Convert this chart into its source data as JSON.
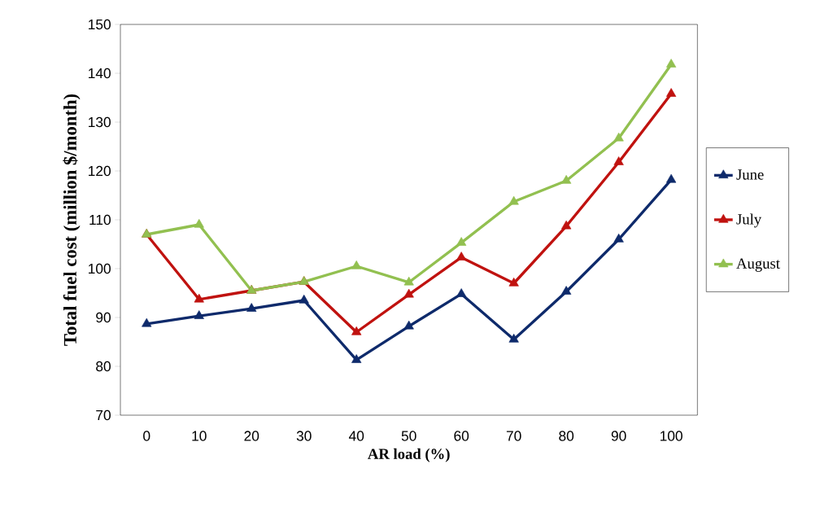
{
  "chart_data": {
    "type": "line",
    "xlabel": "AR load (%)",
    "ylabel": "Total fuel cost (million $/month)",
    "categories": [
      "0",
      "10",
      "20",
      "30",
      "40",
      "50",
      "60",
      "70",
      "80",
      "90",
      "100"
    ],
    "series": [
      {
        "name": "June",
        "color": "#0e2a6b",
        "values": [
          88.7,
          90.3,
          91.8,
          93.5,
          81.3,
          88.2,
          94.8,
          85.5,
          95.3,
          106,
          118.2
        ]
      },
      {
        "name": "July",
        "color": "#c0120f",
        "values": [
          107,
          93.7,
          95.5,
          97.3,
          87,
          94.7,
          102.3,
          97,
          108.7,
          121.8,
          135.8
        ]
      },
      {
        "name": "August",
        "color": "#92c050",
        "values": [
          107,
          109,
          95.5,
          97.3,
          100.5,
          97.2,
          105.3,
          113.7,
          118,
          126.7,
          141.8
        ]
      }
    ],
    "ylim": [
      70,
      150
    ],
    "yticks": [
      70,
      80,
      90,
      100,
      110,
      120,
      130,
      140,
      150
    ],
    "marker": "triangle",
    "legend": "right",
    "grid": false
  }
}
